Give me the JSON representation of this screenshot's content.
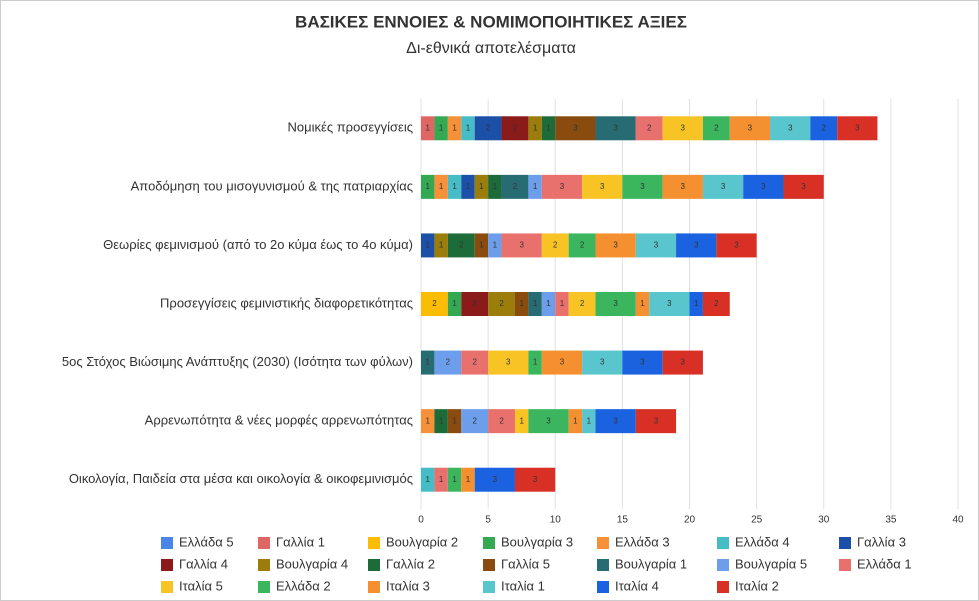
{
  "chart_data": {
    "type": "barh_stacked",
    "title": "ΒΑΣΙΚΕΣ ΕΝΝΟΙΕΣ & ΝΟΜΙΜΟΠΟΙΗΤΙΚΕΣ ΑΞΙΕΣ",
    "subtitle": "Δι-εθνικά αποτελέσματα",
    "categories": [
      "Νομικές προσεγγίσεις",
      "Αποδόμηση του μισογυνισμού & της πατριαρχίας",
      "Θεωρίες φεμινισμού (από το 2ο κύμα έως το 4ο κύμα)",
      "Προσεγγίσεις φεμινιστικής διαφορετικότητας",
      "5ος Στόχος Βιώσιμης Ανάπτυξης (2030) (Ισότητα των φύλων)",
      "Αρρενωπότητα & νέες μορφές αρρενωπότητας",
      "Οικολογία, Παιδεία στα μέσα και οικολογία & οικοφεμινισμός"
    ],
    "series": [
      {
        "name": "Ελλάδα 5",
        "color": "#4a86e8",
        "values": [
          0,
          0,
          0,
          0,
          0,
          0,
          0
        ]
      },
      {
        "name": "Γαλλία 1",
        "color": "#e06666",
        "values": [
          1,
          0,
          0,
          0,
          0,
          0,
          0
        ]
      },
      {
        "name": "Βουλγαρία 2",
        "color": "#fbbc04",
        "values": [
          0,
          0,
          0,
          2,
          0,
          0,
          0
        ]
      },
      {
        "name": "Βουλγαρία 3",
        "color": "#34a853",
        "values": [
          1,
          1,
          0,
          1,
          0,
          0,
          0
        ]
      },
      {
        "name": "Ελλάδα 3",
        "color": "#f6913a",
        "values": [
          1,
          1,
          0,
          0,
          0,
          1,
          0
        ]
      },
      {
        "name": "Ελλάδα 4",
        "color": "#46bdc6",
        "values": [
          1,
          1,
          0,
          0,
          0,
          0,
          1
        ]
      },
      {
        "name": "Γαλλία 3",
        "color": "#1c4fa8",
        "values": [
          2,
          1,
          1,
          0,
          0,
          0,
          0
        ]
      },
      {
        "name": "Γαλλία 4",
        "color": "#8b1a1a",
        "values": [
          2,
          0,
          0,
          2,
          0,
          0,
          0
        ]
      },
      {
        "name": "Βουλγαρία 4",
        "color": "#9a7d0a",
        "values": [
          1,
          1,
          1,
          2,
          0,
          0,
          0
        ]
      },
      {
        "name": "Γαλλία 2",
        "color": "#1e6b3a",
        "values": [
          1,
          1,
          2,
          0,
          0,
          1,
          0
        ]
      },
      {
        "name": "Γαλλία 5",
        "color": "#8a4b0f",
        "values": [
          3,
          0,
          1,
          1,
          0,
          1,
          0
        ]
      },
      {
        "name": "Βουλγαρία 1",
        "color": "#276c72",
        "values": [
          3,
          2,
          0,
          1,
          1,
          0,
          0
        ]
      },
      {
        "name": "Βουλγαρία 5",
        "color": "#6d9eeb",
        "values": [
          0,
          1,
          1,
          1,
          2,
          2,
          0
        ]
      },
      {
        "name": "Ελλάδα 1",
        "color": "#e8716d",
        "values": [
          2,
          3,
          3,
          1,
          2,
          2,
          1
        ]
      },
      {
        "name": "Ιταλία 5",
        "color": "#f7c325",
        "values": [
          3,
          3,
          2,
          2,
          3,
          1,
          0
        ]
      },
      {
        "name": "Ελλάδα 2",
        "color": "#3cb65e",
        "values": [
          2,
          3,
          2,
          3,
          1,
          3,
          1
        ]
      },
      {
        "name": "Ιταλία 3",
        "color": "#f4902f",
        "values": [
          3,
          3,
          3,
          1,
          3,
          1,
          1
        ]
      },
      {
        "name": "Ιταλία 1",
        "color": "#59c5cd",
        "values": [
          3,
          3,
          3,
          3,
          3,
          1,
          0
        ]
      },
      {
        "name": "Ιταλία 4",
        "color": "#1a62e0",
        "values": [
          2,
          3,
          3,
          1,
          3,
          3,
          3
        ]
      },
      {
        "name": "Ιταλία 2",
        "color": "#d93025",
        "values": [
          3,
          3,
          3,
          2,
          3,
          3,
          3
        ]
      }
    ],
    "xlim": [
      0,
      40
    ],
    "xticks": [
      0,
      5,
      10,
      15,
      20,
      25,
      30,
      35,
      40
    ],
    "grid": true
  }
}
